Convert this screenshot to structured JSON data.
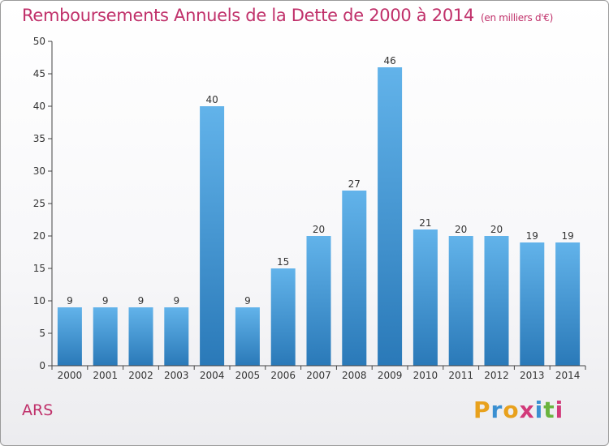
{
  "header": {
    "title": "Remboursements Annuels de la Dette de 2000 à 2014",
    "subtitle": "(en milliers d'€)"
  },
  "commune": "ARS",
  "logo": {
    "letters": [
      "P",
      "r",
      "o",
      "x",
      "i",
      "t",
      "i"
    ],
    "colors": [
      "#e8a11d",
      "#3a8fd1",
      "#e8a11d",
      "#d23a7a",
      "#3a8fd1",
      "#6ab43e",
      "#d23a7a"
    ]
  },
  "colors": {
    "bar_light": "#62b3ea",
    "bar_dark": "#2a79b8",
    "axis": "#444444",
    "grid_tick": "#444444"
  },
  "chart_data": {
    "type": "bar",
    "categories": [
      "2000",
      "2001",
      "2002",
      "2003",
      "2004",
      "2005",
      "2006",
      "2007",
      "2008",
      "2009",
      "2010",
      "2011",
      "2012",
      "2013",
      "2014"
    ],
    "values": [
      9,
      9,
      9,
      9,
      40,
      9,
      15,
      20,
      27,
      46,
      21,
      20,
      20,
      19,
      19
    ],
    "ylim": [
      0,
      50
    ],
    "yticks": [
      0,
      5,
      10,
      15,
      20,
      25,
      30,
      35,
      40,
      45,
      50
    ],
    "grid": false,
    "title": "Remboursements Annuels de la Dette de 2000 à 2014",
    "xlabel": "",
    "ylabel": ""
  }
}
